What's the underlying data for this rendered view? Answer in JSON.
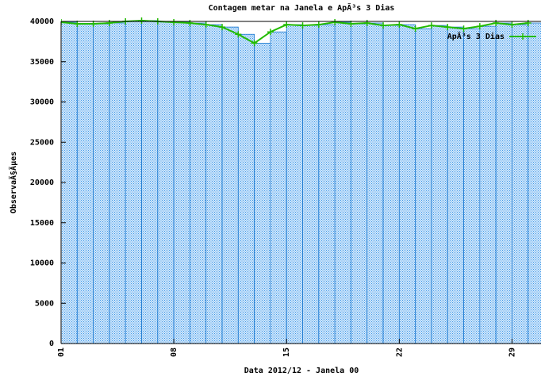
{
  "chart_data": {
    "type": "area-line",
    "title": "Contagem metar na Janela e ApÃ³s 3 Dias",
    "xlabel": "Data 2012/12 - Janela 00",
    "ylabel": "ObservaÃ§Ãµes",
    "x": [
      1,
      2,
      3,
      4,
      5,
      6,
      7,
      8,
      9,
      10,
      11,
      12,
      13,
      14,
      15,
      16,
      17,
      18,
      19,
      20,
      21,
      22,
      23,
      24,
      25,
      26,
      27,
      28,
      29,
      30
    ],
    "series": [
      {
        "name": "ApÃ³s 3 Dias",
        "color": "#22bb00",
        "fill": "#3399ee",
        "values": [
          39900,
          39700,
          39700,
          39800,
          40000,
          40100,
          40000,
          39900,
          39800,
          39600,
          39300,
          38400,
          37300,
          38700,
          39600,
          39500,
          39600,
          39900,
          39700,
          39800,
          39500,
          39600,
          39100,
          39500,
          39300,
          39100,
          39400,
          39800,
          39600,
          39800
        ]
      }
    ],
    "xlim": [
      1,
      30.8
    ],
    "xticks": [
      {
        "value": 1,
        "label": "01"
      },
      {
        "value": 8,
        "label": "08"
      },
      15,
      22,
      29
    ],
    "ylim": [
      0,
      40000
    ],
    "yticks": [
      0,
      5000,
      10000,
      15000,
      20000,
      25000,
      30000,
      35000,
      40000
    ],
    "legend": "top-right"
  }
}
